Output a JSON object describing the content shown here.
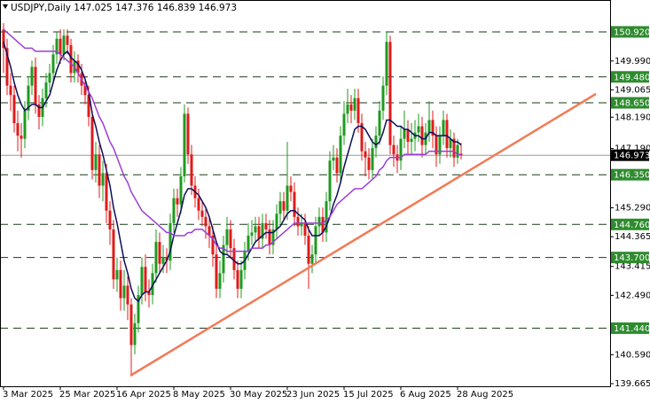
{
  "chart_data": {
    "type": "candlestick",
    "symbol": "USDJPY,Daily",
    "categories": [
      "3 Mar 2025",
      null,
      null,
      null,
      null,
      null,
      null,
      null,
      null,
      null,
      null,
      null,
      null,
      null,
      null,
      null,
      "25 Mar 2025",
      null,
      null,
      null,
      null,
      null,
      null,
      null,
      null,
      null,
      null,
      null,
      null,
      null,
      null,
      null,
      "16 Apr 2025",
      null,
      null,
      null,
      null,
      null,
      null,
      null,
      null,
      null,
      null,
      null,
      null,
      null,
      null,
      null,
      "8 May 2025",
      null,
      null,
      null,
      null,
      null,
      null,
      null,
      null,
      null,
      null,
      null,
      null,
      null,
      null,
      null,
      "30 May 2025",
      null,
      null,
      null,
      null,
      null,
      null,
      null,
      null,
      null,
      null,
      null,
      null,
      null,
      null,
      null,
      "23 Jun 2025",
      null,
      null,
      null,
      null,
      null,
      null,
      null,
      null,
      null,
      null,
      null,
      null,
      null,
      null,
      null,
      "15 Jul 2025",
      null,
      null,
      null,
      null,
      null,
      null,
      null,
      null,
      null,
      null,
      null,
      null,
      null,
      null,
      null,
      "6 Aug 2025",
      null,
      null,
      null,
      null,
      null,
      null,
      null,
      null,
      null,
      null,
      null,
      null,
      null,
      null,
      null,
      "28 Aug 2025",
      null
    ],
    "open": [
      151.0,
      150.4,
      149.2,
      148.9,
      148.0,
      147.6,
      147.5,
      148.4,
      149.2,
      149.8,
      148.6,
      148.2,
      148.8,
      149.3,
      149.6,
      150.2,
      150.7,
      150.2,
      150.8,
      150.5,
      149.6,
      150.0,
      149.6,
      149.2,
      148.9,
      148.2,
      146.5,
      147.0,
      146.0,
      146.4,
      145.2,
      144.6,
      143.0,
      143.3,
      142.4,
      142.8,
      142.2,
      140.9,
      141.6,
      142.5,
      143.4,
      142.6,
      142.5,
      143.2,
      144.2,
      143.5,
      143.7,
      143.6,
      144.8,
      145.6,
      145.4,
      146.3,
      148.3,
      147.0,
      146.0,
      145.6,
      145.2,
      145.0,
      144.7,
      144.4,
      143.8,
      142.7,
      143.2,
      144.1,
      144.6,
      144.0,
      143.3,
      142.7,
      143.3,
      143.9,
      144.4,
      144.5,
      144.7,
      144.3,
      144.8,
      144.6,
      144.1,
      144.6,
      145.1,
      145.5,
      145.2,
      146.0,
      145.8,
      145.0,
      144.7,
      144.8,
      144.4,
      143.5,
      143.8,
      144.7,
      145.0,
      144.5,
      145.5,
      146.8,
      146.9,
      146.4,
      147.6,
      148.3,
      148.6,
      148.4,
      148.8,
      148.0,
      147.1,
      146.9,
      146.5,
      147.2,
      147.6,
      148.4,
      149.2,
      150.6,
      147.3,
      147.0,
      146.8,
      147.5,
      147.8,
      147.4,
      147.5,
      147.7,
      147.9,
      147.3,
      147.7,
      148.1,
      147.6,
      147.0,
      147.6,
      148.1,
      147.2,
      147.5,
      146.9,
      147.025
    ],
    "high": [
      151.2,
      150.7,
      149.6,
      149.2,
      148.4,
      148.0,
      148.7,
      149.5,
      150.0,
      150.1,
      148.9,
      149.1,
      149.6,
      149.9,
      150.5,
      150.9,
      151.0,
      151.0,
      151.0,
      150.7,
      150.3,
      150.2,
      149.9,
      149.5,
      149.2,
      148.4,
      147.4,
      147.3,
      146.8,
      146.7,
      145.5,
      144.9,
      143.7,
      143.6,
      143.3,
      143.1,
      142.4,
      141.9,
      142.8,
      143.7,
      143.8,
      143.0,
      143.5,
      144.6,
      144.5,
      144.1,
      144.0,
      145.1,
      145.9,
      145.9,
      146.6,
      148.6,
      148.5,
      147.3,
      146.3,
      145.9,
      145.5,
      145.3,
      145.0,
      144.7,
      144.1,
      143.6,
      144.4,
      145.0,
      144.9,
      144.3,
      143.6,
      143.6,
      144.2,
      144.8,
      144.9,
      145.0,
      145.0,
      145.1,
      145.1,
      144.9,
      144.9,
      145.4,
      145.8,
      145.8,
      147.4,
      146.3,
      146.1,
      145.3,
      145.1,
      145.1,
      144.7,
      144.1,
      145.0,
      145.3,
      145.3,
      145.8,
      147.1,
      147.3,
      147.2,
      147.9,
      148.7,
      149.1,
      148.9,
      149.1,
      149.1,
      148.3,
      147.4,
      147.2,
      147.5,
      147.9,
      148.7,
      149.5,
      150.92,
      150.8,
      147.6,
      147.3,
      147.9,
      148.4,
      148.1,
      148.0,
      148.1,
      148.3,
      148.2,
      148.0,
      148.7,
      148.4,
      147.9,
      147.9,
      148.4,
      148.3,
      147.8,
      147.7,
      147.5,
      147.376
    ],
    "low": [
      149.6,
      148.9,
      148.4,
      147.7,
      147.1,
      146.9,
      147.2,
      148.1,
      148.9,
      148.3,
      147.8,
      147.9,
      148.5,
      149.0,
      149.3,
      149.9,
      149.9,
      150.0,
      150.2,
      149.3,
      149.3,
      149.3,
      148.9,
      148.6,
      147.9,
      146.2,
      146.1,
      145.6,
      145.5,
      144.8,
      144.1,
      142.7,
      142.6,
      142.0,
      142.0,
      141.7,
      139.9,
      140.6,
      141.3,
      142.2,
      142.3,
      142.1,
      142.2,
      142.9,
      143.2,
      143.2,
      143.2,
      143.3,
      144.5,
      145.0,
      145.1,
      146.1,
      146.7,
      145.7,
      145.3,
      144.9,
      144.7,
      144.3,
      144.0,
      143.4,
      142.4,
      142.4,
      142.9,
      143.8,
      143.7,
      143.0,
      142.4,
      142.4,
      143.0,
      143.6,
      144.1,
      144.2,
      144.0,
      144.0,
      144.3,
      143.8,
      143.8,
      144.3,
      144.8,
      144.9,
      144.9,
      145.5,
      144.7,
      144.4,
      144.4,
      144.1,
      142.7,
      143.2,
      143.5,
      144.4,
      144.2,
      144.2,
      145.2,
      146.5,
      146.1,
      146.1,
      147.3,
      148.0,
      148.0,
      148.1,
      147.7,
      146.8,
      146.3,
      146.2,
      146.2,
      146.9,
      147.3,
      148.1,
      148.9,
      147.0,
      146.6,
      146.4,
      146.5,
      147.2,
      147.0,
      147.0,
      147.1,
      147.4,
      146.9,
      147.0,
      147.4,
      147.2,
      146.6,
      146.7,
      147.3,
      146.9,
      146.9,
      146.6,
      146.7,
      146.839
    ],
    "close": [
      150.4,
      149.2,
      148.9,
      148.0,
      147.6,
      147.5,
      148.4,
      149.2,
      149.8,
      148.6,
      148.2,
      148.8,
      149.3,
      149.6,
      150.2,
      150.7,
      150.2,
      150.8,
      150.5,
      149.6,
      150.0,
      149.6,
      149.2,
      148.9,
      148.2,
      146.5,
      147.0,
      146.0,
      146.4,
      145.2,
      144.6,
      143.0,
      143.3,
      142.4,
      142.8,
      142.2,
      140.9,
      141.6,
      142.5,
      143.4,
      142.6,
      142.5,
      143.2,
      144.2,
      143.5,
      143.7,
      143.6,
      144.8,
      145.6,
      145.4,
      146.3,
      148.3,
      147.0,
      146.0,
      145.6,
      145.2,
      145.0,
      144.7,
      144.4,
      143.8,
      142.7,
      143.2,
      144.1,
      144.6,
      144.0,
      143.3,
      142.7,
      143.3,
      143.9,
      144.4,
      144.5,
      144.7,
      144.3,
      144.8,
      144.6,
      144.1,
      144.6,
      145.1,
      145.5,
      145.2,
      146.0,
      145.8,
      145.0,
      144.7,
      144.8,
      144.4,
      143.5,
      143.8,
      144.7,
      145.0,
      144.5,
      145.5,
      146.8,
      146.9,
      146.4,
      147.6,
      148.3,
      148.6,
      148.4,
      148.8,
      148.0,
      147.1,
      146.9,
      146.5,
      147.2,
      147.6,
      148.4,
      149.2,
      150.6,
      147.3,
      147.0,
      146.8,
      147.5,
      147.8,
      147.4,
      147.5,
      147.7,
      147.9,
      147.3,
      147.7,
      148.1,
      147.6,
      147.0,
      147.6,
      148.1,
      147.2,
      147.5,
      146.9,
      147.3,
      146.973
    ],
    "up_color": "#1f9a1f",
    "down_color": "#e01b1b",
    "lines": [
      {
        "color": "#0d0d5c",
        "values": [
          150.6,
          150.2,
          149.8,
          149.3,
          148.9,
          148.6,
          148.4,
          148.5,
          148.6,
          148.6,
          148.5,
          148.5,
          148.7,
          148.9,
          149.3,
          149.7,
          150.0,
          150.2,
          150.3,
          150.1,
          150.0,
          149.9,
          149.7,
          149.4,
          149.0,
          148.3,
          147.9,
          147.4,
          147.0,
          146.5,
          146.0,
          145.3,
          144.8,
          144.2,
          143.6,
          143.2,
          142.7,
          142.4,
          142.3,
          142.5,
          142.6,
          142.6,
          142.8,
          143.0,
          143.2,
          143.4,
          143.6,
          143.9,
          144.4,
          144.8,
          145.2,
          145.7,
          145.9,
          145.9,
          145.8,
          145.7,
          145.5,
          145.3,
          145.0,
          144.6,
          144.2,
          143.9,
          143.8,
          143.8,
          143.7,
          143.6,
          143.5,
          143.5,
          143.6,
          143.8,
          144.0,
          144.2,
          144.3,
          144.4,
          144.5,
          144.5,
          144.5,
          144.6,
          144.7,
          144.9,
          145.1,
          145.2,
          145.2,
          145.1,
          145.0,
          144.9,
          144.6,
          144.4,
          144.4,
          144.4,
          144.5,
          144.7,
          145.0,
          145.4,
          145.7,
          146.1,
          146.6,
          147.0,
          147.4,
          147.8,
          147.9,
          147.9,
          147.8,
          147.6,
          147.4,
          147.3,
          147.4,
          147.7,
          148.1,
          148.1,
          148.0,
          147.9,
          147.9,
          147.8,
          147.8,
          147.7,
          147.6,
          147.6,
          147.5,
          147.5,
          147.7,
          147.7,
          147.6,
          147.6,
          147.6,
          147.6,
          147.5,
          147.4,
          147.4,
          147.3
        ]
      },
      {
        "color": "#9b3fd6",
        "values": [
          151.0,
          150.9,
          150.8,
          150.7,
          150.6,
          150.5,
          150.4,
          150.4,
          150.4,
          150.3,
          150.3,
          150.3,
          150.3,
          150.3,
          150.3,
          150.3,
          150.2,
          150.1,
          150.0,
          149.9,
          149.8,
          149.6,
          149.4,
          149.2,
          149.0,
          148.8,
          148.5,
          148.2,
          148.0,
          147.7,
          147.4,
          147.2,
          146.9,
          146.6,
          146.3,
          146.1,
          145.8,
          145.6,
          145.4,
          145.2,
          145.1,
          145.0,
          144.9,
          144.8,
          144.7,
          144.6,
          144.5,
          144.5,
          144.4,
          144.4,
          144.4,
          144.4,
          144.5,
          144.5,
          144.6,
          144.6,
          144.6,
          144.5,
          144.4,
          144.3,
          144.1,
          144.0,
          144.0,
          143.9,
          143.9,
          143.9,
          143.9,
          143.9,
          143.9,
          143.9,
          144.0,
          144.0,
          144.0,
          144.0,
          144.1,
          144.1,
          144.2,
          144.3,
          144.4,
          144.5,
          144.6,
          144.7,
          144.8,
          144.8,
          144.8,
          144.8,
          144.8,
          144.8,
          144.8,
          144.8,
          144.8,
          144.9,
          145.0,
          145.2,
          145.4,
          145.5,
          145.6,
          145.7,
          145.8,
          145.9,
          145.9,
          145.9,
          146.0,
          146.1,
          146.2,
          146.3,
          146.5,
          146.6,
          146.8,
          146.9,
          146.9,
          146.9,
          146.9,
          147.0,
          147.0,
          147.0,
          147.0,
          147.0,
          147.0,
          147.0,
          147.1,
          147.1,
          147.1,
          147.1,
          147.1,
          147.1,
          147.1,
          147.1,
          147.0,
          147.0
        ]
      }
    ],
    "levels": [
      {
        "value": 150.92,
        "label": "150.920"
      },
      {
        "value": 149.48,
        "label": "149.480"
      },
      {
        "value": 148.65,
        "label": "148.650"
      },
      {
        "value": 146.35,
        "label": "146.350"
      },
      {
        "value": 144.76,
        "label": "144.760"
      },
      {
        "value": 143.7,
        "label": "143.700"
      },
      {
        "value": 141.44,
        "label": "141.440"
      }
    ],
    "level_color": "#2e8b2e",
    "ylim": [
      139.58,
      151.94
    ],
    "yticks": [
      {
        "value": 149.99,
        "label": "149.990"
      },
      149.065,
      {
        "value": 148.19,
        "label": "148.190"
      },
      {
        "value": 147.19,
        "label": "147.190"
      },
      {
        "value": 145.29,
        "label": "145.290"
      },
      144.365,
      143.415,
      {
        "value": 142.49,
        "label": "142.490"
      },
      {
        "value": 140.59,
        "label": "140.590"
      },
      139.665
    ]
  }
}
